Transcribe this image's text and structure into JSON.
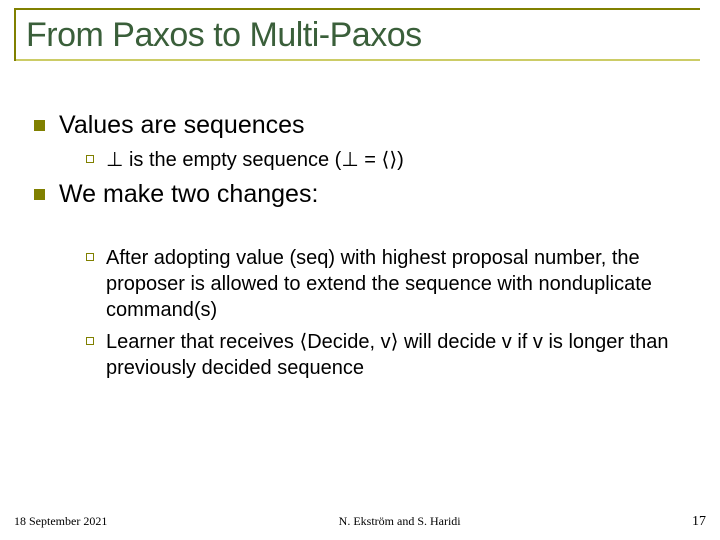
{
  "title": "From Paxos to Multi-Paxos",
  "bullets": {
    "b1": "Values are sequences",
    "b1_1": "⊥ is the empty sequence (⊥ = ⟨⟩)",
    "b2": "We make two changes:",
    "b2_1": "After adopting value (seq) with highest proposal number, the proposer is allowed to extend the sequence with nonduplicate command(s)",
    "b2_2": "Learner that receives ⟨Decide, v⟩ will decide v if v is longer than previously decided sequence"
  },
  "footer": {
    "date": "18 September 2021",
    "authors": "N. Ekström and S. Haridi",
    "page": "17"
  },
  "colors": {
    "accent": "#808000",
    "title": "#3a5f3a",
    "underline": "#cccc66"
  }
}
